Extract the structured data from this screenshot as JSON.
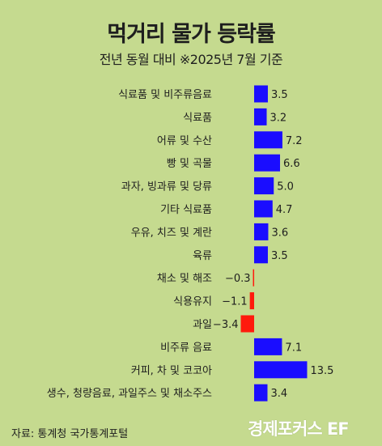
{
  "header": {
    "title": "먹거리 물가 등락률",
    "subtitle": "전년 동월 대비 ※2025년 7월 기준"
  },
  "footer": {
    "source": "자료: 통계청 국가통계포털",
    "logo": "경제포커스 EF"
  },
  "colors": {
    "background": "#c5da8f",
    "positive_bar": "#1a0dff",
    "negative_bar": "#ff1a0d"
  },
  "chart_data": {
    "type": "bar",
    "orientation": "horizontal",
    "title": "먹거리 물가 등락률",
    "subtitle": "전년 동월 대비 ※2025년 7월 기준",
    "categories": [
      "식료품 및 비주류음료",
      "식료품",
      "어류 및 수산",
      "빵 및 곡물",
      "과자, 빙과류 및 당류",
      "기타 식료품",
      "우유, 치즈 및 계란",
      "육류",
      "채소 및 해조",
      "식용유지",
      "과일",
      "비주류 음료",
      "커피, 차 및 코코아",
      "생수, 청량음료, 과일주스 및 채소주스"
    ],
    "values": [
      3.5,
      3.2,
      7.2,
      6.6,
      5.0,
      4.7,
      3.6,
      3.5,
      -0.3,
      -1.1,
      -3.4,
      7.1,
      13.5,
      3.4
    ],
    "value_labels": [
      "3.5",
      "3.2",
      "7.2",
      "6.6",
      "5.0",
      "4.7",
      "3.6",
      "3.5",
      "−0.3",
      "−1.1",
      "−3.4",
      "7.1",
      "13.5",
      "3.4"
    ],
    "xlabel": "",
    "ylabel": "",
    "grid": false,
    "legend": "none"
  }
}
